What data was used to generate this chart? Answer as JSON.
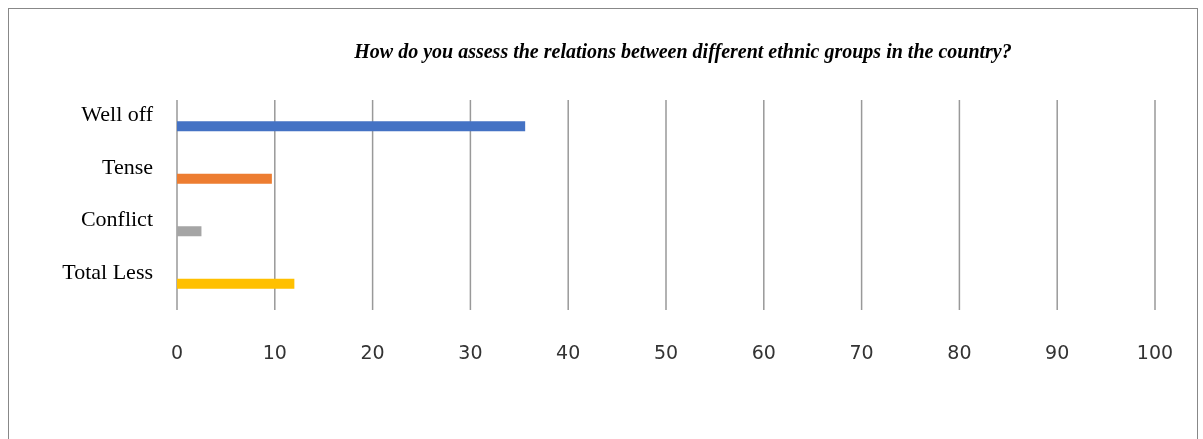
{
  "chart_data": {
    "type": "bar",
    "orientation": "horizontal",
    "title": "How do you assess the relations between different ethnic groups in the country?",
    "categories": [
      "Well off",
      "Tense",
      "Conflict",
      "Total Less"
    ],
    "values": [
      35.6,
      9.7,
      2.5,
      12.0
    ],
    "colors": [
      "#4472c4",
      "#ed7d31",
      "#a5a5a5",
      "#ffc000"
    ],
    "xlim": [
      0,
      100
    ],
    "xticks": [
      0,
      10,
      20,
      30,
      40,
      50,
      60,
      70,
      80,
      90,
      100
    ],
    "grid": "x"
  }
}
